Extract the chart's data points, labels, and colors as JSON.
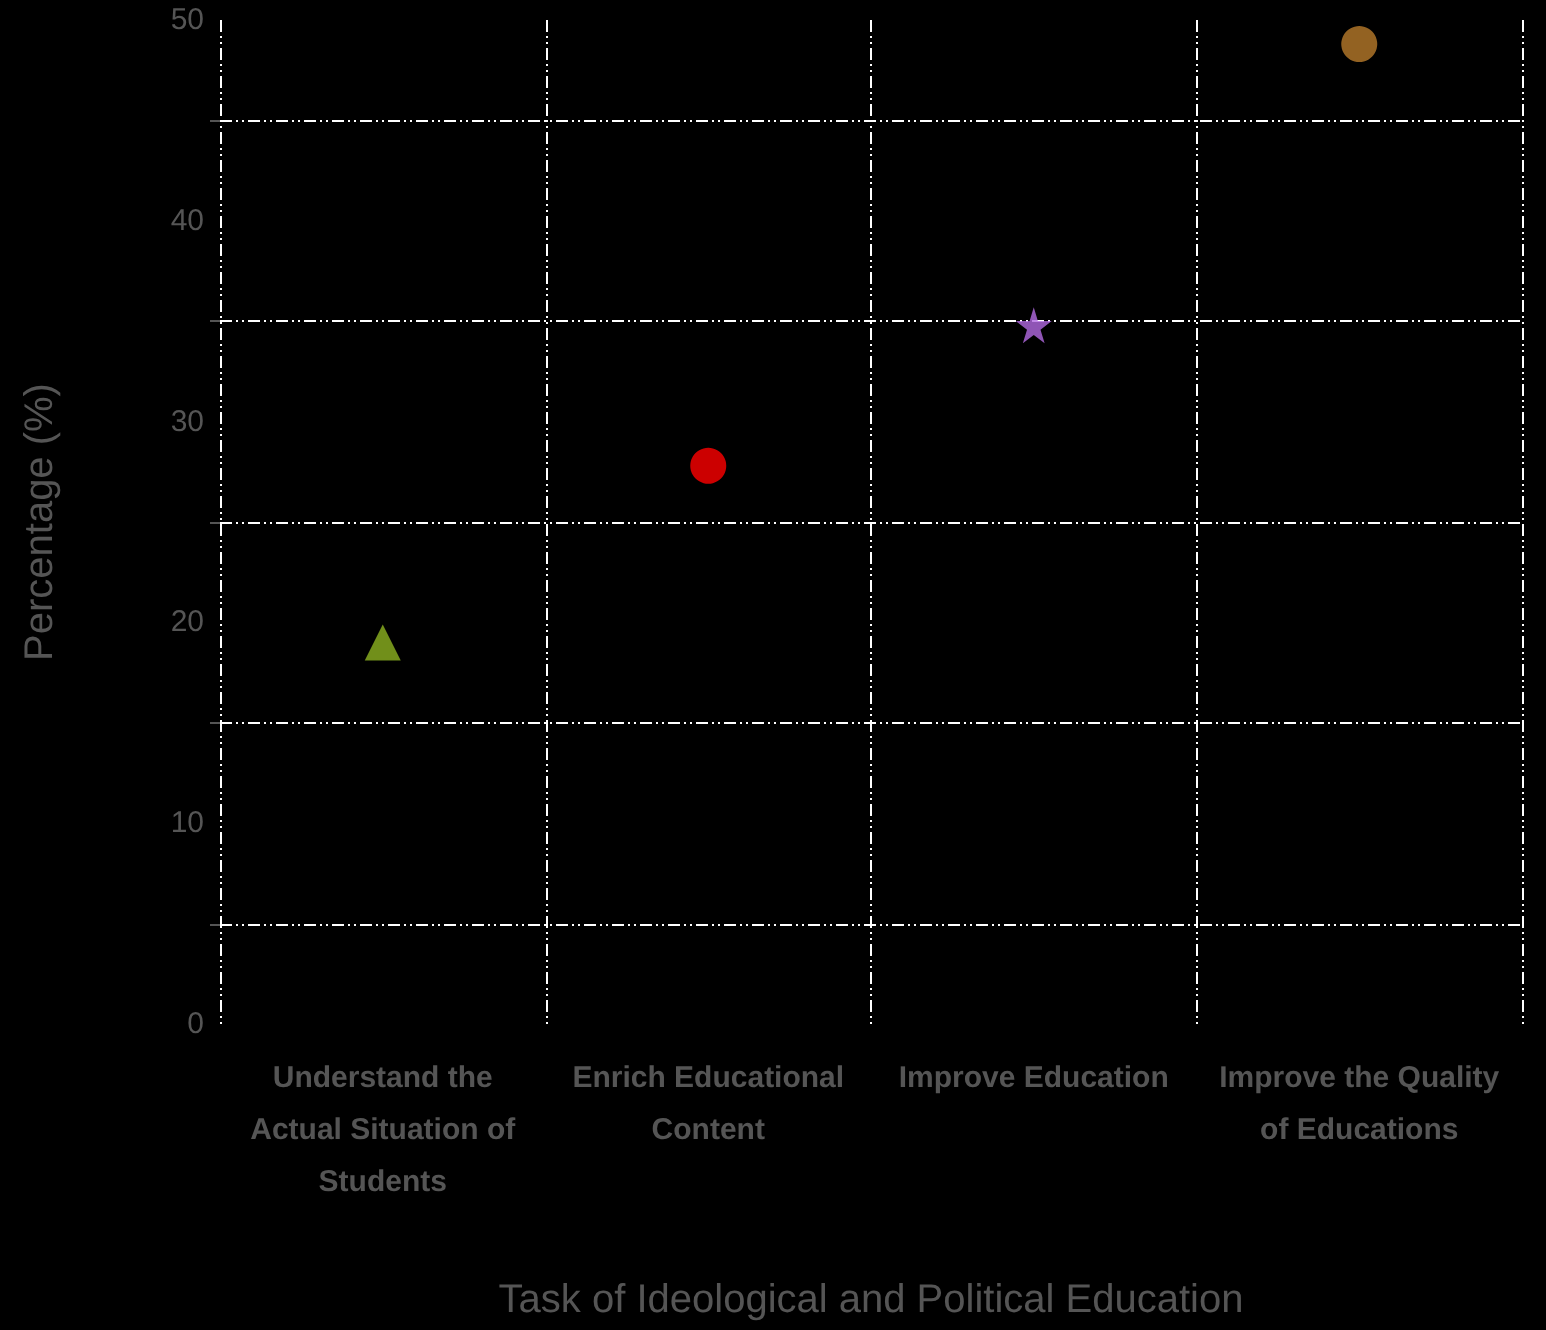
{
  "chart_data": {
    "type": "scatter",
    "xlabel": "Task of Ideological and Political Education",
    "ylabel": "Percentage (%)",
    "categories": [
      "Understand the Actual Situation of Students",
      "Enrich Educational Content",
      "Improve Education",
      "Improve the Quality of Educations"
    ],
    "series": [
      {
        "color": "#8db320",
        "marker": "triangle",
        "values": [
          19,
          null,
          null,
          null
        ]
      },
      {
        "color": "#ff0000",
        "marker": "circle",
        "values": [
          null,
          27.8,
          null,
          null
        ]
      },
      {
        "color": "#b36ae2",
        "marker": "star",
        "values": [
          null,
          null,
          34.8,
          null
        ]
      },
      {
        "color": "#b87a2a",
        "marker": "circle",
        "values": [
          null,
          null,
          null,
          48.8
        ]
      }
    ],
    "ylim": [
      0,
      50
    ],
    "yticks": [
      0,
      {
        "value": 5,
        "label": null
      },
      10,
      {
        "value": 15,
        "label": null
      },
      20,
      {
        "value": 25,
        "label": null
      },
      30,
      {
        "value": 35,
        "label": null
      },
      40,
      {
        "value": 45,
        "label": null
      },
      50
    ],
    "grid": true
  }
}
